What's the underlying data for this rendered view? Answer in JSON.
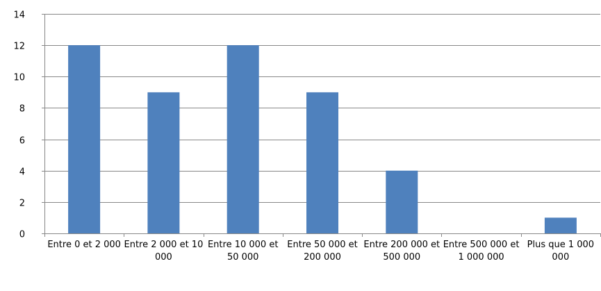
{
  "chart_data": {
    "type": "bar",
    "title": "",
    "xlabel": "",
    "ylabel": "",
    "categories": [
      "Entre 0 et 2 000",
      "Entre 2 000 et 10 000",
      "Entre 10 000 et 50 000",
      "Entre 50 000 et 200 000",
      "Entre 200 000 et 500 000",
      "Entre 500 000 et 1 000 000",
      "Plus que 1 000 000"
    ],
    "values": [
      12,
      9,
      12,
      9,
      4,
      0,
      1
    ],
    "ylim": [
      0,
      14
    ],
    "yticks": [
      0,
      2,
      4,
      6,
      8,
      10,
      12,
      14
    ],
    "grid": true,
    "legend": "none",
    "colors": {
      "bar": "#4F81BD",
      "grid": "#878787",
      "axis": "#878787",
      "text": "#000000"
    }
  }
}
